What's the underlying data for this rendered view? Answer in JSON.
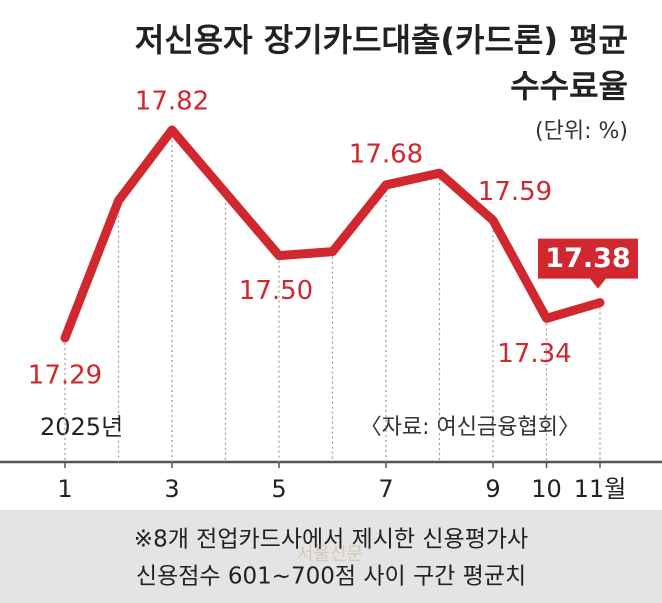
{
  "chart_data": {
    "type": "line",
    "title": "저신용자 장기카드대출(카드론) 평균",
    "title_line2": "수수료율",
    "unit": "(단위: %)",
    "year_label": "2025년",
    "source": "〈자료: 여신금융협회〉",
    "footnote": [
      "※8개 전업카드사에서 제시한 신용평가사",
      "신용점수 601~700점 사이 구간 평균치"
    ],
    "watermark": "서울신문",
    "x": [
      1,
      2,
      3,
      4,
      5,
      6,
      7,
      8,
      9,
      10,
      11
    ],
    "xticks": [
      1,
      3,
      5,
      7,
      9,
      10,
      {
        "value": 11,
        "label": "11월"
      }
    ],
    "series": [
      {
        "name": "평균 수수료율",
        "color": "#d0282e",
        "values": [
          17.29,
          17.64,
          17.82,
          17.66,
          17.5,
          17.51,
          17.68,
          17.71,
          17.59,
          17.34,
          17.38
        ],
        "value_labels": [
          "17.29",
          null,
          "17.82",
          null,
          "17.50",
          null,
          "17.68",
          null,
          "17.59",
          "17.34",
          "17.38"
        ]
      }
    ]
  }
}
